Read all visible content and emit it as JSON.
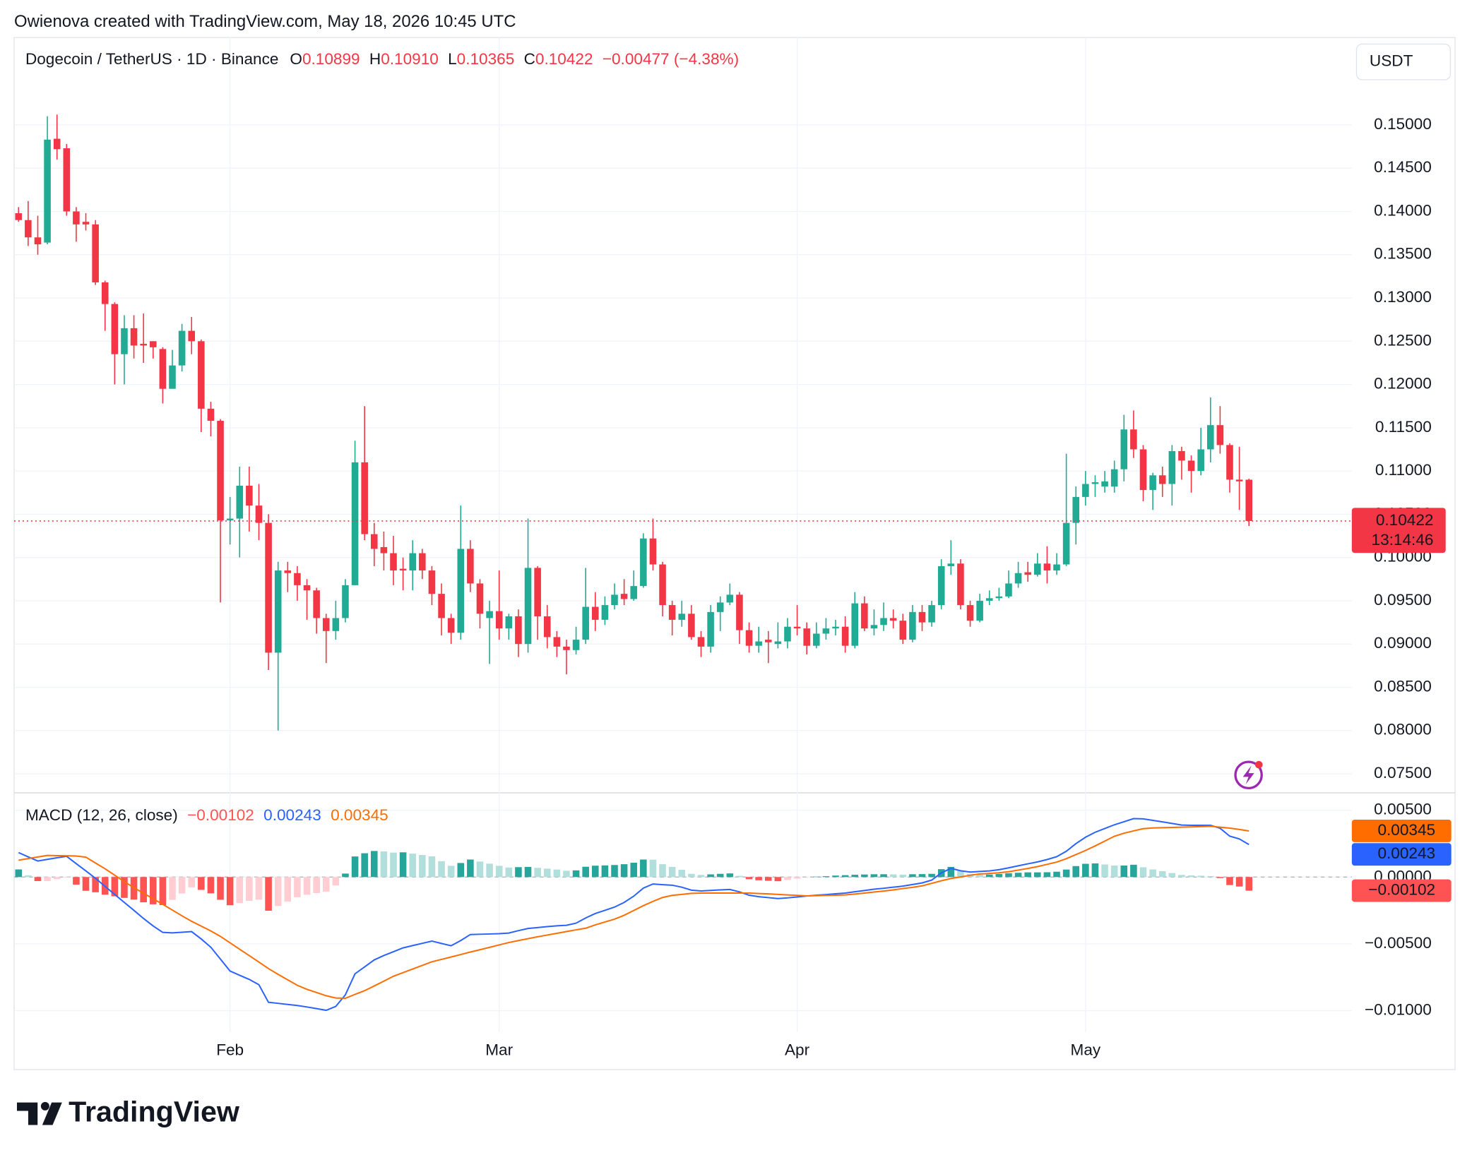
{
  "attribution": "Owienova created with TradingView.com, May 18, 2026 10:45 UTC",
  "currency_button": "USDT",
  "brand": "TradingView",
  "chart_data": [
    {
      "type": "candlestick",
      "title": "Dogecoin / TetherUS · 1D · Binance",
      "legend_fields": [
        {
          "key": "O",
          "label": "0.10899"
        },
        {
          "key": "H",
          "label": "0.10910"
        },
        {
          "key": "L",
          "label": "0.10365"
        },
        {
          "key": "C",
          "label": "0.10422"
        }
      ],
      "change": "−0.00477 (−4.38%)",
      "countdown": "13:14:46",
      "up_color": "#22ab94",
      "down_color": "#f23645",
      "xlim": [
        -0.46,
        138.7
      ],
      "xticks": [
        {
          "value": 22,
          "label": "Feb"
        },
        {
          "value": 50,
          "label": "Mar"
        },
        {
          "value": 81,
          "label": "Apr"
        },
        {
          "value": 111,
          "label": "May"
        }
      ],
      "ylim": [
        0.0728,
        0.1601
      ],
      "yticks": [
        {
          "value": 0.075,
          "label": "0.07500"
        },
        {
          "value": 0.08,
          "label": "0.08000"
        },
        {
          "value": 0.085,
          "label": "0.08500"
        },
        {
          "value": 0.09,
          "label": "0.09000"
        },
        {
          "value": 0.095,
          "label": "0.09500"
        },
        {
          "value": 0.1,
          "label": "0.10000"
        },
        {
          "value": 0.105,
          "label": "0.10500"
        },
        {
          "value": 0.11,
          "label": "0.11000"
        },
        {
          "value": 0.115,
          "label": "0.11500"
        },
        {
          "value": 0.12,
          "label": "0.12000"
        },
        {
          "value": 0.125,
          "label": "0.12500"
        },
        {
          "value": 0.13,
          "label": "0.13000"
        },
        {
          "value": 0.135,
          "label": "0.13500"
        },
        {
          "value": 0.14,
          "label": "0.14000"
        },
        {
          "value": 0.145,
          "label": "0.14500"
        },
        {
          "value": 0.15,
          "label": "0.15000"
        }
      ],
      "grid": true,
      "open": [
        0.1398,
        0.139,
        0.137,
        0.1364,
        0.1484,
        0.1473,
        0.14,
        0.1388,
        0.1385,
        0.1318,
        0.1293,
        0.1235,
        0.1265,
        0.1247,
        0.125,
        0.1241,
        0.1195,
        0.1222,
        0.1262,
        0.125,
        0.1172,
        0.1158,
        0.1043,
        0.1045,
        0.1083,
        0.106,
        0.104,
        0.089,
        0.0985,
        0.0982,
        0.0968,
        0.0962,
        0.093,
        0.0915,
        0.093,
        0.0968,
        0.111,
        0.1027,
        0.1012,
        0.1005,
        0.0987,
        0.0985,
        0.1005,
        0.0985,
        0.0958,
        0.093,
        0.0913,
        0.101,
        0.097,
        0.093,
        0.0938,
        0.0918,
        0.0932,
        0.09,
        0.0988,
        0.0932,
        0.0908,
        0.0897,
        0.0893,
        0.0905,
        0.0943,
        0.0928,
        0.0945,
        0.0958,
        0.0952,
        0.0967,
        0.1022,
        0.0992,
        0.0945,
        0.0928,
        0.0935,
        0.0908,
        0.0897,
        0.0937,
        0.0948,
        0.0957,
        0.0916,
        0.0898,
        0.0905,
        0.09,
        0.0903,
        0.092,
        0.0918,
        0.0898,
        0.0912,
        0.0918,
        0.092,
        0.0898,
        0.0947,
        0.0918,
        0.0922,
        0.093,
        0.0927,
        0.0905,
        0.0937,
        0.0925,
        0.0945,
        0.099,
        0.0993,
        0.0945,
        0.0927,
        0.095,
        0.0953,
        0.0955,
        0.097,
        0.0983,
        0.098,
        0.0993,
        0.0985,
        0.0992,
        0.104,
        0.107,
        0.1085,
        0.1082,
        0.1082,
        0.1102,
        0.1148,
        0.1125,
        0.1078,
        0.1095,
        0.1085,
        0.1123,
        0.1112,
        0.11,
        0.1125,
        0.1153,
        0.113,
        0.109,
        0.10899
      ],
      "high": [
        0.1405,
        0.1412,
        0.1395,
        0.151,
        0.1512,
        0.1478,
        0.1405,
        0.1398,
        0.139,
        0.132,
        0.1295,
        0.128,
        0.128,
        0.1282,
        0.125,
        0.1243,
        0.124,
        0.127,
        0.1278,
        0.1252,
        0.118,
        0.116,
        0.107,
        0.1105,
        0.1105,
        0.1085,
        0.105,
        0.0995,
        0.0995,
        0.099,
        0.0975,
        0.0965,
        0.0935,
        0.095,
        0.0975,
        0.1135,
        0.1175,
        0.104,
        0.103,
        0.1025,
        0.1,
        0.102,
        0.101,
        0.099,
        0.097,
        0.0935,
        0.106,
        0.102,
        0.0975,
        0.095,
        0.0985,
        0.0935,
        0.094,
        0.1045,
        0.099,
        0.0945,
        0.0915,
        0.0905,
        0.092,
        0.0988,
        0.096,
        0.0955,
        0.097,
        0.0975,
        0.0985,
        0.1028,
        0.1045,
        0.0995,
        0.095,
        0.095,
        0.0945,
        0.0915,
        0.0945,
        0.0955,
        0.097,
        0.096,
        0.0925,
        0.092,
        0.0915,
        0.0925,
        0.093,
        0.0945,
        0.0925,
        0.0925,
        0.093,
        0.0928,
        0.0932,
        0.096,
        0.0955,
        0.094,
        0.0948,
        0.094,
        0.0935,
        0.0945,
        0.0945,
        0.095,
        0.0998,
        0.102,
        0.0998,
        0.095,
        0.0958,
        0.0962,
        0.0965,
        0.0985,
        0.0995,
        0.0995,
        0.1005,
        0.1013,
        0.1005,
        0.112,
        0.1082,
        0.11,
        0.1095,
        0.11,
        0.1112,
        0.1165,
        0.117,
        0.113,
        0.1098,
        0.1105,
        0.113,
        0.1128,
        0.1118,
        0.115,
        0.1185,
        0.1175,
        0.1132,
        0.1128,
        0.1091
      ],
      "low": [
        0.1388,
        0.136,
        0.135,
        0.1362,
        0.146,
        0.1395,
        0.1365,
        0.1378,
        0.1315,
        0.1262,
        0.12,
        0.12,
        0.123,
        0.1225,
        0.123,
        0.1178,
        0.1195,
        0.1215,
        0.1235,
        0.1145,
        0.114,
        0.0948,
        0.1015,
        0.1,
        0.103,
        0.102,
        0.087,
        0.08,
        0.096,
        0.095,
        0.0928,
        0.0912,
        0.0878,
        0.0905,
        0.0925,
        0.0968,
        0.102,
        0.099,
        0.0985,
        0.0968,
        0.0962,
        0.0962,
        0.0975,
        0.0945,
        0.091,
        0.09,
        0.0905,
        0.096,
        0.0918,
        0.0877,
        0.0905,
        0.0905,
        0.0885,
        0.089,
        0.0905,
        0.0895,
        0.0885,
        0.0865,
        0.0888,
        0.09,
        0.0915,
        0.0922,
        0.094,
        0.0945,
        0.095,
        0.0965,
        0.0985,
        0.0932,
        0.091,
        0.092,
        0.0905,
        0.0885,
        0.089,
        0.0915,
        0.0945,
        0.09,
        0.089,
        0.089,
        0.0878,
        0.0895,
        0.0895,
        0.091,
        0.0888,
        0.0895,
        0.0905,
        0.091,
        0.089,
        0.0895,
        0.0915,
        0.091,
        0.0915,
        0.0918,
        0.09,
        0.0902,
        0.0915,
        0.092,
        0.094,
        0.098,
        0.094,
        0.092,
        0.0925,
        0.0945,
        0.095,
        0.0953,
        0.0965,
        0.0972,
        0.0978,
        0.097,
        0.098,
        0.099,
        0.1015,
        0.106,
        0.107,
        0.1075,
        0.1075,
        0.1088,
        0.1115,
        0.1065,
        0.1055,
        0.107,
        0.106,
        0.109,
        0.1075,
        0.1095,
        0.111,
        0.112,
        0.1075,
        0.1055,
        0.10365
      ],
      "close": [
        0.139,
        0.137,
        0.1362,
        0.1483,
        0.1472,
        0.14,
        0.1385,
        0.1385,
        0.1318,
        0.1293,
        0.1235,
        0.1265,
        0.1245,
        0.1245,
        0.1243,
        0.1195,
        0.1222,
        0.1262,
        0.125,
        0.1172,
        0.1158,
        0.1043,
        0.1045,
        0.1083,
        0.106,
        0.104,
        0.089,
        0.0985,
        0.0982,
        0.0968,
        0.0962,
        0.093,
        0.0915,
        0.093,
        0.0968,
        0.111,
        0.1027,
        0.101,
        0.1005,
        0.0985,
        0.0985,
        0.1005,
        0.0985,
        0.0958,
        0.093,
        0.0913,
        0.101,
        0.097,
        0.0935,
        0.0938,
        0.0918,
        0.0932,
        0.09,
        0.0988,
        0.0932,
        0.0908,
        0.0897,
        0.0893,
        0.0905,
        0.0943,
        0.0928,
        0.0945,
        0.0957,
        0.0952,
        0.0967,
        0.1022,
        0.0992,
        0.0945,
        0.0928,
        0.0935,
        0.0908,
        0.0897,
        0.0937,
        0.0948,
        0.0957,
        0.0916,
        0.0898,
        0.0903,
        0.0902,
        0.0903,
        0.092,
        0.0918,
        0.0898,
        0.0912,
        0.0918,
        0.092,
        0.0898,
        0.0947,
        0.0918,
        0.0922,
        0.093,
        0.0927,
        0.0905,
        0.0937,
        0.0925,
        0.0945,
        0.099,
        0.0993,
        0.0945,
        0.0927,
        0.095,
        0.0953,
        0.0955,
        0.097,
        0.0982,
        0.098,
        0.0993,
        0.0985,
        0.0992,
        0.104,
        0.107,
        0.1085,
        0.1087,
        0.1088,
        0.1102,
        0.1148,
        0.1125,
        0.1078,
        0.1095,
        0.1085,
        0.1123,
        0.1112,
        0.11,
        0.1125,
        0.1153,
        0.113,
        0.109,
        0.1088,
        0.10422
      ]
    },
    {
      "type": "macd",
      "legend": {
        "label": "MACD (12, 26, close)",
        "values": [
          "−0.00102",
          "0.00243",
          "0.00345"
        ]
      },
      "ylim": [
        -0.0116,
        0.0063
      ],
      "yticks": [
        {
          "value": -0.01,
          "label": "−0.01000"
        },
        {
          "value": -0.005,
          "label": "−0.00500"
        },
        {
          "value": 0,
          "label": "0.00000"
        },
        {
          "value": 0.005,
          "label": "0.00500"
        }
      ],
      "histogram_colors": {
        "up_rising": "#26a69a",
        "up_falling": "#b2dfdb",
        "down_falling": "#ff5252",
        "down_rising": "#ffcdd2"
      },
      "macd_color": "#2962ff",
      "signal_color": "#ff6d00",
      "histogram": [
        0.00057,
        0.00013,
        -0.0003,
        -0.0003,
        -0.00016,
        -4e-05,
        -0.00057,
        -0.00103,
        -0.00114,
        -0.00132,
        -0.00144,
        -0.00156,
        -0.00169,
        -0.00189,
        -0.00204,
        -0.0021,
        -0.00171,
        -0.00123,
        -0.00077,
        -0.00096,
        -0.00122,
        -0.0017,
        -0.00211,
        -0.00195,
        -0.00178,
        -0.00169,
        -0.00252,
        -0.00217,
        -0.00184,
        -0.00151,
        -0.00132,
        -0.0012,
        -0.00109,
        -0.00063,
        0.00026,
        0.00154,
        0.00178,
        0.00195,
        0.00192,
        0.00183,
        0.00185,
        0.00175,
        0.00165,
        0.00155,
        0.00119,
        0.00084,
        0.00105,
        0.00131,
        0.00116,
        0.001,
        0.00084,
        0.00071,
        0.00074,
        0.00076,
        0.00069,
        0.00063,
        0.00056,
        0.00047,
        0.0005,
        0.00077,
        0.00085,
        0.00087,
        0.0009,
        0.00096,
        0.00107,
        0.00131,
        0.0013,
        0.00096,
        0.00076,
        0.00054,
        0.00024,
        0.00016,
        0.0002,
        0.00024,
        0.00027,
        9e-05,
        -0.00016,
        -0.00024,
        -0.00028,
        -0.00031,
        -0.00022,
        -0.00012,
        -1e-05,
        3e-05,
        6e-05,
        0.00011,
        0.00014,
        0.00017,
        0.00019,
        0.00021,
        0.00021,
        0.0002,
        0.00018,
        0.00021,
        0.00022,
        0.00024,
        0.00059,
        0.00076,
        0.00046,
        0.00024,
        0.00019,
        0.00019,
        0.00023,
        0.00029,
        0.00032,
        0.00035,
        0.00035,
        0.00036,
        0.0004,
        0.00056,
        0.00082,
        0.00099,
        0.00102,
        0.00094,
        0.00086,
        0.00086,
        0.00092,
        0.00073,
        0.00057,
        0.00044,
        0.0003,
        0.00016,
        0.00012,
        0.0001,
        7e-05,
        -8e-05,
        -0.0006,
        -0.00071,
        -0.00102
      ],
      "macd": [
        0.00183,
        0.00151,
        0.0012,
        0.00132,
        0.00144,
        0.00155,
        0.001,
        0.00046,
        -9e-05,
        -0.0007,
        -0.0013,
        -0.0019,
        -0.00249,
        -0.0031,
        -0.00366,
        -0.00414,
        -0.00418,
        -0.00413,
        -0.00408,
        -0.00463,
        -0.00525,
        -0.00614,
        -0.00703,
        -0.00735,
        -0.00766,
        -0.00805,
        -0.00937,
        -0.00945,
        -0.00953,
        -0.00961,
        -0.00972,
        -0.00984,
        -0.00997,
        -0.00968,
        -0.00881,
        -0.00724,
        -0.00672,
        -0.0062,
        -0.00587,
        -0.00559,
        -0.0053,
        -0.00513,
        -0.00496,
        -0.00479,
        -0.00497,
        -0.00514,
        -0.00475,
        -0.0043,
        -0.00428,
        -0.00426,
        -0.00424,
        -0.00419,
        -0.00401,
        -0.00385,
        -0.00378,
        -0.00371,
        -0.00365,
        -0.00361,
        -0.00345,
        -0.00306,
        -0.00273,
        -0.00249,
        -0.00225,
        -0.0019,
        -0.00143,
        -0.00083,
        -0.00052,
        -0.00057,
        -0.00061,
        -0.00076,
        -0.00098,
        -0.00104,
        -0.001,
        -0.00096,
        -0.00093,
        -0.00111,
        -0.00136,
        -0.00147,
        -0.00154,
        -0.00161,
        -0.00156,
        -0.00149,
        -0.00142,
        -0.00136,
        -0.00131,
        -0.00125,
        -0.0012,
        -0.0011,
        -0.00101,
        -0.00091,
        -0.00084,
        -0.00076,
        -0.00068,
        -0.00056,
        -0.00044,
        -0.00023,
        0.00031,
        0.00065,
        0.00047,
        0.00037,
        0.00042,
        0.00046,
        0.00055,
        0.00069,
        0.00084,
        0.00099,
        0.00113,
        0.00131,
        0.00152,
        0.00193,
        0.0025,
        0.00298,
        0.00335,
        0.00363,
        0.00391,
        0.00414,
        0.00437,
        0.00435,
        0.00424,
        0.00413,
        0.00401,
        0.00389,
        0.00387,
        0.00387,
        0.00387,
        0.00365,
        0.00306,
        0.00285,
        0.00243
      ],
      "signal": [
        0.00126,
        0.00138,
        0.0015,
        0.00162,
        0.0016,
        0.00159,
        0.00157,
        0.00149,
        0.00105,
        0.00062,
        0.00014,
        -0.00034,
        -0.0008,
        -0.00121,
        -0.00162,
        -0.00204,
        -0.00247,
        -0.0029,
        -0.00331,
        -0.00367,
        -0.00403,
        -0.00444,
        -0.00492,
        -0.0054,
        -0.00588,
        -0.00636,
        -0.00685,
        -0.00728,
        -0.00769,
        -0.0081,
        -0.0084,
        -0.00864,
        -0.00888,
        -0.00905,
        -0.00907,
        -0.00878,
        -0.0085,
        -0.00815,
        -0.00779,
        -0.00742,
        -0.00715,
        -0.00688,
        -0.00661,
        -0.00634,
        -0.00616,
        -0.00598,
        -0.0058,
        -0.00561,
        -0.00544,
        -0.00526,
        -0.00508,
        -0.0049,
        -0.00475,
        -0.00461,
        -0.00447,
        -0.00434,
        -0.00421,
        -0.00408,
        -0.00395,
        -0.00383,
        -0.00358,
        -0.00336,
        -0.00315,
        -0.00286,
        -0.0025,
        -0.00214,
        -0.00182,
        -0.00153,
        -0.00137,
        -0.0013,
        -0.00122,
        -0.0012,
        -0.0012,
        -0.0012,
        -0.0012,
        -0.0012,
        -0.0012,
        -0.00123,
        -0.00126,
        -0.0013,
        -0.00134,
        -0.00137,
        -0.00141,
        -0.00139,
        -0.00137,
        -0.00136,
        -0.00134,
        -0.00127,
        -0.0012,
        -0.00112,
        -0.00105,
        -0.00096,
        -0.00086,
        -0.00077,
        -0.00066,
        -0.00047,
        -0.00028,
        -0.00011,
        1e-05,
        0.00013,
        0.00023,
        0.00027,
        0.00032,
        0.0004,
        0.00052,
        0.00064,
        0.00078,
        0.00095,
        0.00112,
        0.00137,
        0.00168,
        0.00199,
        0.00233,
        0.00269,
        0.00305,
        0.00328,
        0.00345,
        0.00362,
        0.00367,
        0.00369,
        0.00371,
        0.00373,
        0.00375,
        0.00377,
        0.0038,
        0.00373,
        0.00366,
        0.00356,
        0.00345
      ]
    }
  ]
}
